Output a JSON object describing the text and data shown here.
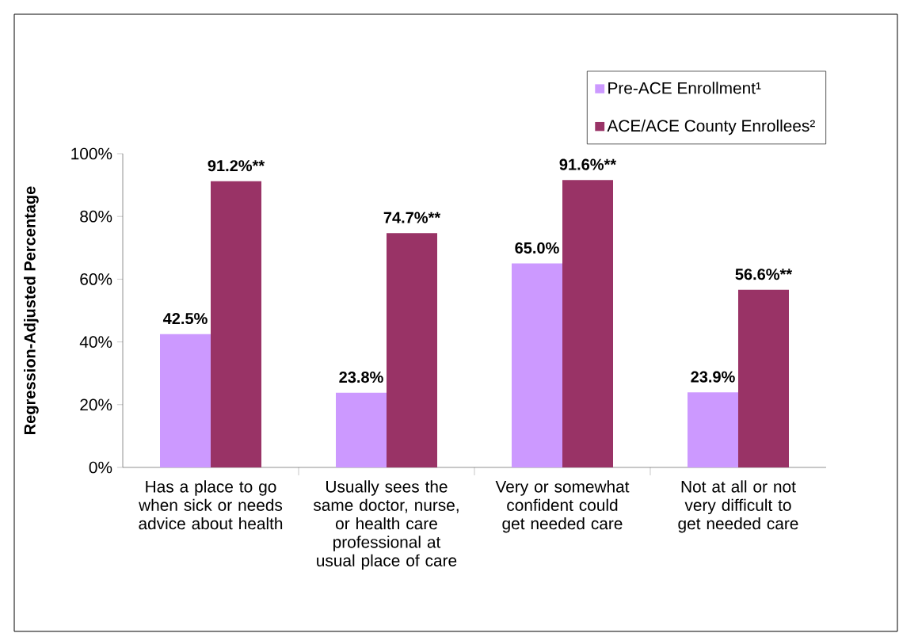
{
  "chart_data": {
    "type": "bar",
    "ylabel": "Regression-Adjusted Percentage",
    "categories": [
      "Has a place to go when sick or needs advice about health",
      "Usually sees the same doctor, nurse, or health care professional at usual place of care",
      "Very or somewhat confident could get needed care",
      "Not at all or not very difficult to get needed care"
    ],
    "series": [
      {
        "name": "Pre-ACE Enrollment¹",
        "color": "#cc99ff",
        "values": [
          42.5,
          23.8,
          65.0,
          23.9
        ],
        "value_labels": [
          "42.5%",
          "23.8%",
          "65.0%",
          "23.9%"
        ]
      },
      {
        "name": "ACE/ACE County Enrollees²",
        "color": "#993366",
        "values": [
          91.2,
          74.7,
          91.6,
          56.6
        ],
        "value_labels": [
          "91.2%**",
          "74.7%**",
          "91.6%**",
          "56.6%**"
        ]
      }
    ],
    "ylim": [
      0,
      100
    ],
    "yticks": [
      {
        "value": 0,
        "label": "0%"
      },
      {
        "value": 20,
        "label": "20%"
      },
      {
        "value": 40,
        "label": "40%"
      },
      {
        "value": 60,
        "label": "60%"
      },
      {
        "value": 80,
        "label": "80%"
      },
      {
        "value": 100,
        "label": "100%"
      }
    ],
    "legend": "top right",
    "grid": false
  }
}
